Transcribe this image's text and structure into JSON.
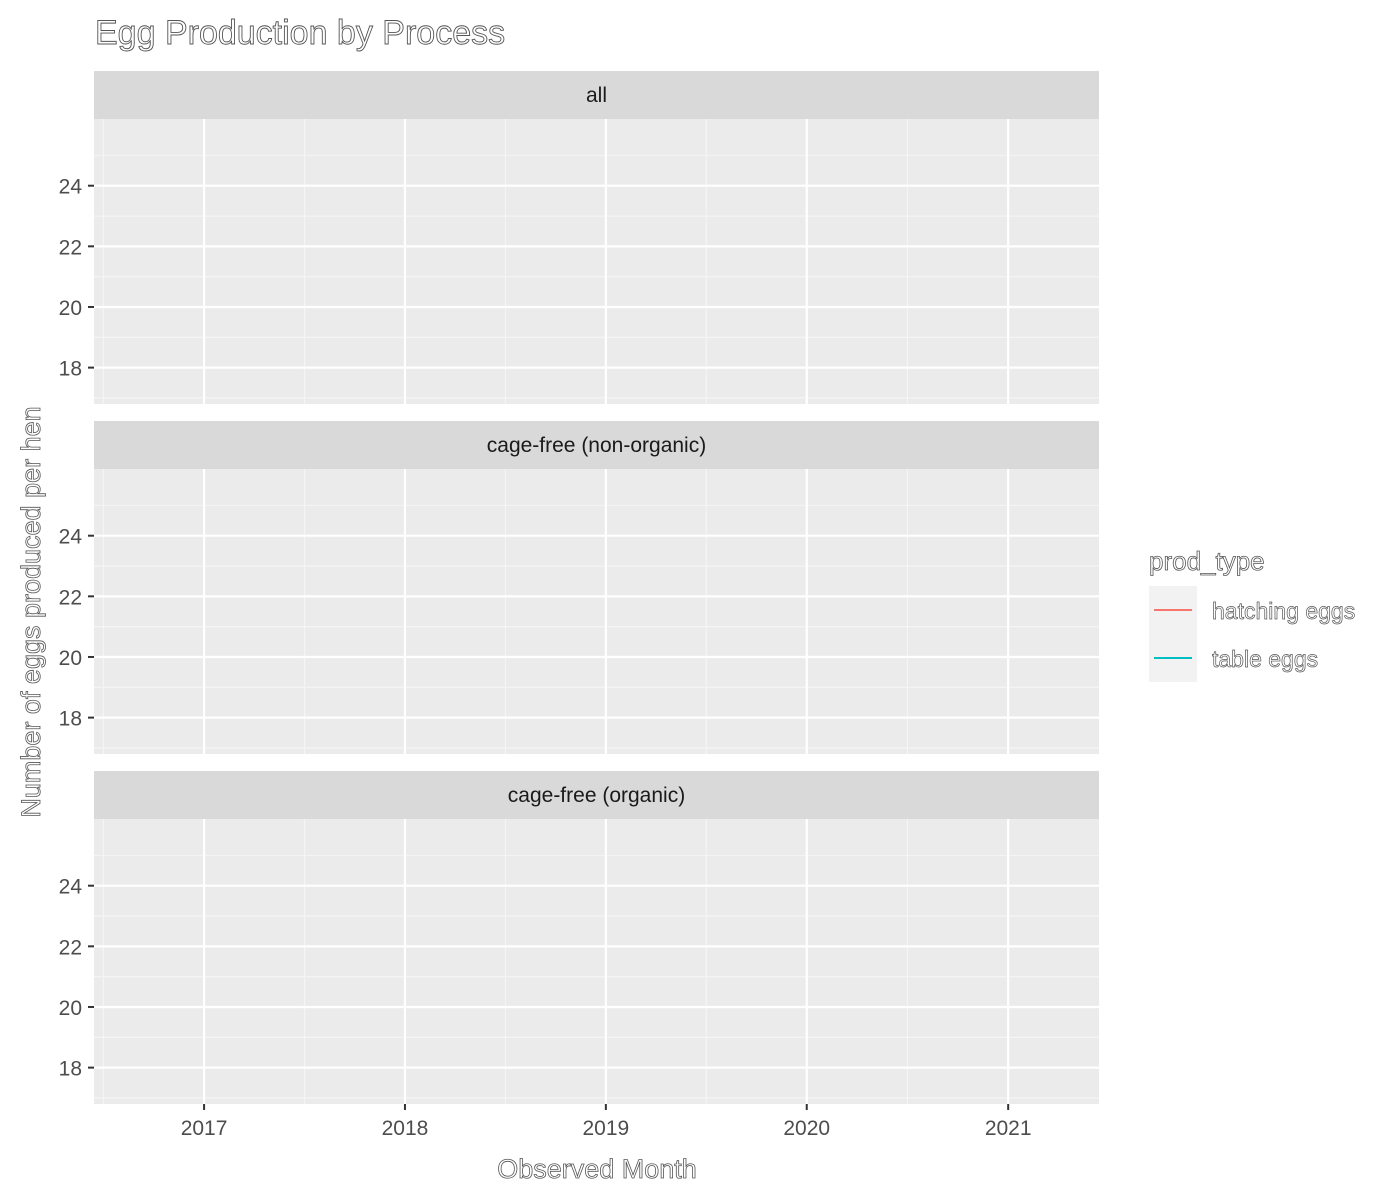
{
  "chart_data": {
    "type": "line",
    "title": "Egg Production by Process",
    "xlabel": "Observed Month",
    "ylabel": "Number of eggs produced per hen",
    "x_ticks": [
      "2017",
      "2018",
      "2019",
      "2020",
      "2021"
    ],
    "y_ticks": [
      18,
      20,
      22,
      24
    ],
    "xlim": [
      "2016-06-15",
      "2021-06-15"
    ],
    "ylim": [
      16.8,
      26.2
    ],
    "grid": true,
    "facets": [
      "all",
      "cage-free (non-organic)",
      "cage-free (organic)"
    ],
    "legend": {
      "title": "prod_type",
      "position": "right",
      "entries": [
        {
          "label": "hatching eggs",
          "color": "#F8766D"
        },
        {
          "label": "table eggs",
          "color": "#00BFC4"
        }
      ]
    },
    "series": [
      {
        "name": "hatching eggs",
        "values": []
      },
      {
        "name": "table eggs",
        "values": []
      }
    ]
  },
  "colors": {
    "panel_background": "#EBEBEB",
    "strip_background": "#D9D9D9",
    "grid_major": "#FFFFFF",
    "grid_minor": "#F5F5F5",
    "legend_key_background": "#F2F2F2"
  }
}
